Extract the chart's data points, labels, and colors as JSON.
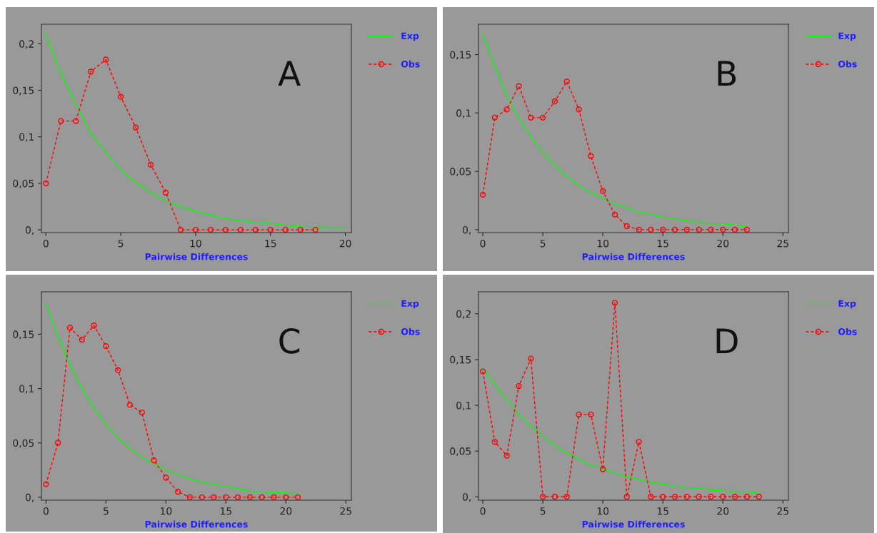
{
  "chart_data": [
    {
      "type": "line",
      "xlabel": "Pairwise Differences",
      "annotations": [
        "A"
      ],
      "legend": "right",
      "grid": false,
      "xlim": [
        -0.3,
        20.4
      ],
      "xticks": [
        0,
        5,
        10,
        15,
        20
      ],
      "ylim": [
        -0.003,
        0.221
      ],
      "yticks": [
        {
          "value": 0,
          "label": "0,"
        },
        {
          "value": 0.05,
          "label": "0,05"
        },
        {
          "value": 0.1,
          "label": "0,1"
        },
        {
          "value": 0.15,
          "label": "0,15"
        },
        {
          "value": 0.2,
          "label": "0,2"
        }
      ],
      "series": [
        {
          "name": "Exp",
          "color": "#00ff00",
          "marker": "none",
          "line_style": "solid",
          "x": [
            0,
            1,
            2,
            3,
            4,
            5,
            6,
            7,
            8,
            9,
            10,
            11,
            12,
            13,
            14,
            15,
            16,
            17,
            18,
            19,
            20
          ],
          "values": [
            0.21,
            0.168,
            0.135,
            0.104,
            0.083,
            0.065,
            0.051,
            0.04,
            0.031,
            0.025,
            0.02,
            0.016,
            0.012,
            0.01,
            0.008,
            0.007,
            0.005,
            0.004,
            0.003,
            0.002,
            0.002
          ]
        },
        {
          "name": "Obs",
          "color": "#ff0000",
          "marker": "circle",
          "line_style": "dashed",
          "x": [
            0,
            1,
            2,
            3,
            4,
            5,
            6,
            7,
            8,
            9,
            10,
            11,
            12,
            13,
            14,
            15,
            16,
            17,
            18
          ],
          "values": [
            0.05,
            0.117,
            0.117,
            0.17,
            0.183,
            0.143,
            0.11,
            0.07,
            0.04,
            0,
            0,
            0,
            0,
            0,
            0,
            0,
            0,
            0,
            0
          ]
        }
      ]
    },
    {
      "type": "line",
      "xlabel": "Pairwise Differences",
      "annotations": [
        "B"
      ],
      "legend": "right",
      "grid": false,
      "xlim": [
        -0.36,
        25.46
      ],
      "xticks": [
        0,
        5,
        10,
        15,
        20,
        25
      ],
      "ylim": [
        -0.0025,
        0.176
      ],
      "yticks": [
        {
          "value": 0,
          "label": "0,"
        },
        {
          "value": 0.05,
          "label": "0,05"
        },
        {
          "value": 0.1,
          "label": "0,1"
        },
        {
          "value": 0.15,
          "label": "0,15"
        }
      ],
      "series": [
        {
          "name": "Exp",
          "color": "#00ff00",
          "marker": "none",
          "line_style": "solid",
          "x": [
            0,
            1,
            2,
            3,
            4,
            5,
            6,
            7,
            8,
            9,
            10,
            11,
            12,
            13,
            14,
            15,
            16,
            17,
            18,
            19,
            20,
            21,
            22
          ],
          "values": [
            0.167,
            0.14,
            0.115,
            0.096,
            0.08,
            0.066,
            0.055,
            0.046,
            0.038,
            0.032,
            0.027,
            0.022,
            0.019,
            0.015,
            0.013,
            0.011,
            0.009,
            0.008,
            0.006,
            0.005,
            0.005,
            0.004,
            0.003
          ]
        },
        {
          "name": "Obs",
          "color": "#ff0000",
          "marker": "circle",
          "line_style": "dashed",
          "x": [
            0,
            1,
            2,
            3,
            4,
            5,
            6,
            7,
            8,
            9,
            10,
            11,
            12,
            13,
            14,
            15,
            16,
            17,
            18,
            19,
            20,
            21,
            22
          ],
          "values": [
            0.03,
            0.096,
            0.103,
            0.123,
            0.096,
            0.096,
            0.11,
            0.127,
            0.103,
            0.063,
            0.033,
            0.013,
            0.003,
            0,
            0,
            0,
            0,
            0,
            0,
            0,
            0,
            0,
            0
          ]
        }
      ]
    },
    {
      "type": "line",
      "xlabel": "Pairwise Differences",
      "annotations": [
        "C"
      ],
      "legend": "right",
      "grid": false,
      "xlim": [
        -0.38,
        25.46
      ],
      "xticks": [
        0,
        5,
        10,
        15,
        20,
        25
      ],
      "ylim": [
        -0.0027,
        0.189
      ],
      "yticks": [
        {
          "value": 0,
          "label": "0,"
        },
        {
          "value": 0.05,
          "label": "0,05"
        },
        {
          "value": 0.1,
          "label": "0,1"
        },
        {
          "value": 0.15,
          "label": "0,15"
        }
      ],
      "series": [
        {
          "name": "Exp",
          "color": "#00ff00",
          "marker": "none",
          "line_style": "solid",
          "x": [
            0,
            1,
            2,
            3,
            4,
            5,
            6,
            7,
            8,
            9,
            10,
            11,
            12,
            13,
            14,
            15,
            16,
            17,
            18,
            19,
            20,
            21
          ],
          "values": [
            0.178,
            0.148,
            0.122,
            0.1,
            0.082,
            0.067,
            0.055,
            0.045,
            0.037,
            0.031,
            0.025,
            0.021,
            0.017,
            0.014,
            0.012,
            0.01,
            0.008,
            0.006,
            0.005,
            0.004,
            0.004,
            0.003
          ]
        },
        {
          "name": "Obs",
          "color": "#ff0000",
          "marker": "circle",
          "line_style": "dashed",
          "x": [
            0,
            1,
            2,
            3,
            4,
            5,
            6,
            7,
            8,
            9,
            10,
            11,
            12,
            13,
            14,
            15,
            16,
            17,
            18,
            19,
            20,
            21
          ],
          "values": [
            0.012,
            0.05,
            0.156,
            0.145,
            0.158,
            0.139,
            0.117,
            0.085,
            0.078,
            0.034,
            0.018,
            0.005,
            0,
            0,
            0,
            0,
            0,
            0,
            0,
            0,
            0,
            0
          ]
        }
      ]
    },
    {
      "type": "line",
      "xlabel": "Pairwise Differences",
      "annotations": [
        "D"
      ],
      "legend": "right",
      "grid": false,
      "xlim": [
        -0.36,
        25.46
      ],
      "xticks": [
        0,
        5,
        10,
        15,
        20,
        25
      ],
      "ylim": [
        -0.0037,
        0.224
      ],
      "yticks": [
        {
          "value": 0,
          "label": "0,"
        },
        {
          "value": 0.05,
          "label": "0,05"
        },
        {
          "value": 0.1,
          "label": "0,1"
        },
        {
          "value": 0.15,
          "label": "0,15"
        },
        {
          "value": 0.2,
          "label": "0,2"
        }
      ],
      "series": [
        {
          "name": "Exp",
          "color": "#00ff00",
          "marker": "none",
          "line_style": "solid",
          "x": [
            0,
            1,
            2,
            3,
            4,
            5,
            6,
            7,
            8,
            9,
            10,
            11,
            12,
            13,
            14,
            15,
            16,
            17,
            18,
            19,
            20,
            21,
            22,
            23
          ],
          "values": [
            0.141,
            0.123,
            0.106,
            0.09,
            0.077,
            0.066,
            0.056,
            0.048,
            0.041,
            0.035,
            0.03,
            0.026,
            0.022,
            0.019,
            0.016,
            0.014,
            0.012,
            0.01,
            0.009,
            0.008,
            0.007,
            0.006,
            0.005,
            0.004
          ]
        },
        {
          "name": "Obs",
          "color": "#ff0000",
          "marker": "circle",
          "line_style": "dashed",
          "x": [
            0,
            1,
            2,
            3,
            4,
            5,
            6,
            7,
            8,
            9,
            10,
            11,
            12,
            13,
            14,
            15,
            16,
            17,
            18,
            19,
            20,
            21,
            22,
            23
          ],
          "values": [
            0.137,
            0.06,
            0.045,
            0.121,
            0.151,
            0,
            0,
            0,
            0.09,
            0.09,
            0.03,
            0.212,
            0,
            0.06,
            0,
            0,
            0,
            0,
            0,
            0,
            0,
            0,
            0,
            0
          ]
        }
      ]
    }
  ]
}
